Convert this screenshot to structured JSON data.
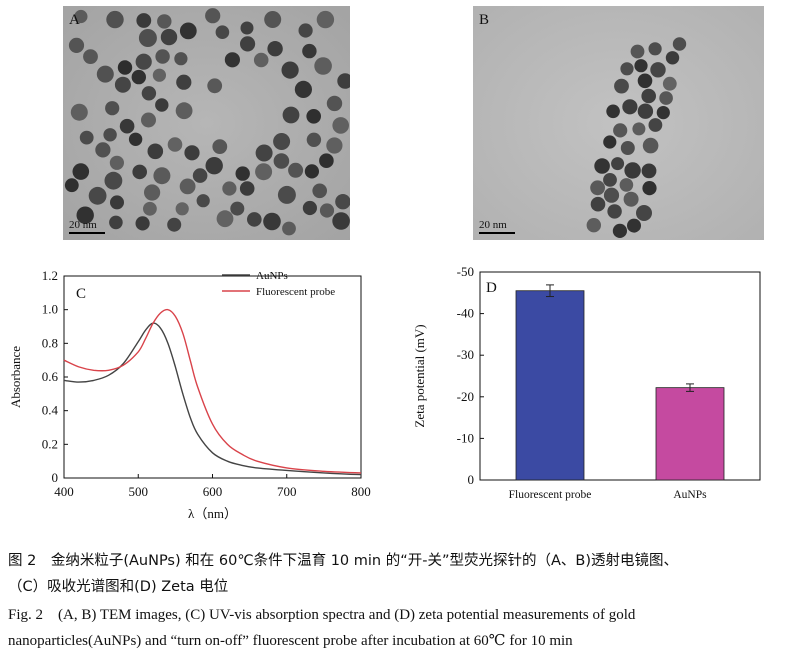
{
  "panels": {
    "A": {
      "letter": "A",
      "scale_bar": "20 nm"
    },
    "B": {
      "letter": "B",
      "scale_bar": "20 nm"
    }
  },
  "chart_data": [
    {
      "panel": "C",
      "type": "line",
      "title": "",
      "xlabel": "λ（nm）",
      "ylabel": "Absorbance",
      "xlim": [
        400,
        800
      ],
      "ylim": [
        0,
        1.2
      ],
      "xticks": [
        "400",
        "500",
        "600",
        "700",
        "800"
      ],
      "yticks": [
        "0",
        "0.2",
        "0.4",
        "0.6",
        "0.8",
        "1.0",
        "1.2"
      ],
      "legend_position": "top-right",
      "series": [
        {
          "name": "AuNPs",
          "color": "#444444",
          "x": [
            400,
            420,
            440,
            460,
            480,
            500,
            510,
            520,
            530,
            540,
            550,
            560,
            570,
            580,
            600,
            620,
            640,
            660,
            700,
            750,
            800
          ],
          "y": [
            0.58,
            0.57,
            0.58,
            0.61,
            0.68,
            0.81,
            0.88,
            0.92,
            0.89,
            0.8,
            0.66,
            0.5,
            0.36,
            0.26,
            0.15,
            0.1,
            0.075,
            0.06,
            0.045,
            0.03,
            0.02
          ]
        },
        {
          "name": "Fluorescent probe",
          "color": "#d9434a",
          "x": [
            400,
            420,
            440,
            460,
            480,
            500,
            510,
            520,
            530,
            540,
            550,
            560,
            570,
            580,
            600,
            620,
            640,
            660,
            700,
            750,
            800
          ],
          "y": [
            0.7,
            0.66,
            0.64,
            0.64,
            0.67,
            0.75,
            0.83,
            0.92,
            0.98,
            1.0,
            0.96,
            0.86,
            0.7,
            0.54,
            0.32,
            0.2,
            0.14,
            0.1,
            0.06,
            0.04,
            0.03
          ]
        }
      ]
    },
    {
      "panel": "D",
      "type": "bar",
      "title": "",
      "xlabel": "",
      "ylabel": "Zeta potential (mV)",
      "ylim": [
        0,
        -50
      ],
      "yticks": [
        "0",
        "-10",
        "-20",
        "-30",
        "-40",
        "-50"
      ],
      "categories": [
        "Fluorescent probe",
        "AuNPs"
      ],
      "values": [
        -45.5,
        -22.2
      ],
      "errors": [
        1.4,
        0.9
      ],
      "colors": [
        "#3b4aa3",
        "#c54aa0"
      ]
    }
  ],
  "caption": {
    "cn_line1": "图 2　金纳米粒子(AuNPs) 和在 60℃条件下温育 10 min 的“开-关”型荧光探针的（A、B)透射电镜图、",
    "cn_line2": "（C）吸收光谱图和(D) Zeta 电位",
    "en_line1": "Fig. 2　(A, B) TEM images, (C) UV-vis absorption spectra and (D) zeta potential measurements of gold",
    "en_line2": "nanoparticles(AuNPs) and “turn on-off” fluorescent probe after incubation at 60℃ for 10 min"
  }
}
